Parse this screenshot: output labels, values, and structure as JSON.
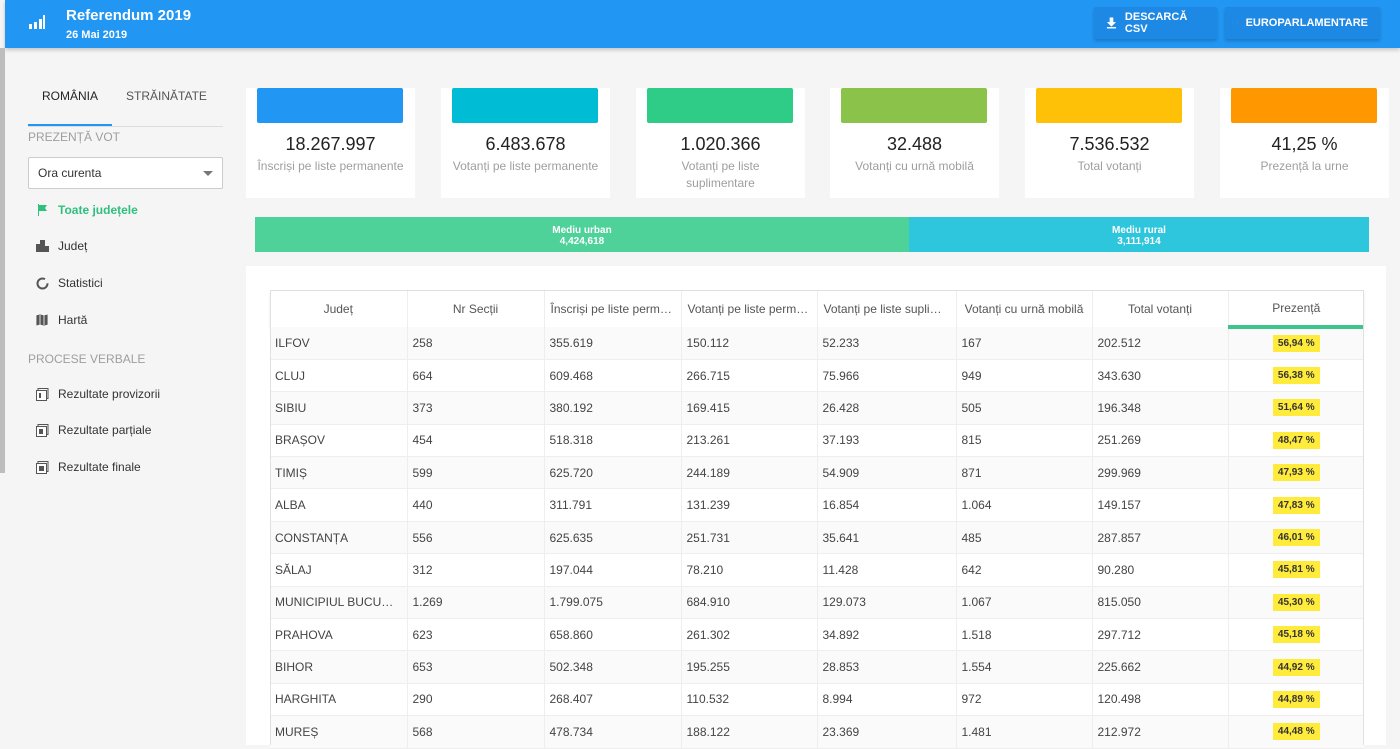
{
  "header": {
    "title": "Referendum 2019",
    "subtitle": "26 Mai 2019",
    "btn_csv": "DESCARCĂ CSV",
    "btn_euro": "EUROPARLAMENTARE"
  },
  "sidebar": {
    "tabs": [
      "ROMÂNIA",
      "STRĂINĂTATE"
    ],
    "section_vote": "PREZENȚĂ VOT",
    "select_value": "Ora curenta",
    "nav": [
      "Toate județele",
      "Județ",
      "Statistici",
      "Hartă"
    ],
    "section_pv": "PROCESE VERBALE",
    "pv": [
      "Rezultate provizorii",
      "Rezultate parțiale",
      "Rezultate finale"
    ]
  },
  "cards": [
    {
      "value": "18.267.997",
      "label": "Înscriși pe liste permanente",
      "color": "#2196f3"
    },
    {
      "value": "6.483.678",
      "label": "Votanți pe liste permanente",
      "color": "#00bcd4"
    },
    {
      "value": "1.020.366",
      "label": "Votanți pe liste suplimentare",
      "color": "#2ecc87"
    },
    {
      "value": "32.488",
      "label": "Votanți cu urnă mobilă",
      "color": "#8bc34a"
    },
    {
      "value": "7.536.532",
      "label": "Total votanți",
      "color": "#ffc107"
    },
    {
      "value": "41,25 %",
      "label": "Prezență la urne",
      "color": "#ff9800"
    }
  ],
  "mediu": {
    "urban_label": "Mediu urban",
    "urban_value": "4,424,618",
    "rural_label": "Mediu rural",
    "rural_value": "3,111,914"
  },
  "table": {
    "headers": [
      "Județ",
      "Nr Secții",
      "Înscriși pe liste permanente",
      "Votanți pe liste permanente",
      "Votanți pe liste suplimentare",
      "Votanți cu urnă mobilă",
      "Total votanți",
      "Prezență"
    ],
    "rows": [
      [
        "ILFOV",
        "258",
        "355.619",
        "150.112",
        "52.233",
        "167",
        "202.512",
        "56,94 %"
      ],
      [
        "CLUJ",
        "664",
        "609.468",
        "266.715",
        "75.966",
        "949",
        "343.630",
        "56,38 %"
      ],
      [
        "SIBIU",
        "373",
        "380.192",
        "169.415",
        "26.428",
        "505",
        "196.348",
        "51,64 %"
      ],
      [
        "BRAȘOV",
        "454",
        "518.318",
        "213.261",
        "37.193",
        "815",
        "251.269",
        "48,47 %"
      ],
      [
        "TIMIȘ",
        "599",
        "625.720",
        "244.189",
        "54.909",
        "871",
        "299.969",
        "47,93 %"
      ],
      [
        "ALBA",
        "440",
        "311.791",
        "131.239",
        "16.854",
        "1.064",
        "149.157",
        "47,83 %"
      ],
      [
        "CONSTANȚA",
        "556",
        "625.635",
        "251.731",
        "35.641",
        "485",
        "287.857",
        "46,01 %"
      ],
      [
        "SĂLAJ",
        "312",
        "197.044",
        "78.210",
        "11.428",
        "642",
        "90.280",
        "45,81 %"
      ],
      [
        "MUNICIPIUL BUCUREȘTI",
        "1.269",
        "1.799.075",
        "684.910",
        "129.073",
        "1.067",
        "815.050",
        "45,30 %"
      ],
      [
        "PRAHOVA",
        "623",
        "658.860",
        "261.302",
        "34.892",
        "1.518",
        "297.712",
        "45,18 %"
      ],
      [
        "BIHOR",
        "653",
        "502.348",
        "195.255",
        "28.853",
        "1.554",
        "225.662",
        "44,92 %"
      ],
      [
        "HARGHITA",
        "290",
        "268.407",
        "110.532",
        "8.994",
        "972",
        "120.498",
        "44,89 %"
      ],
      [
        "MUREȘ",
        "568",
        "478.734",
        "188.122",
        "23.369",
        "1.481",
        "212.972",
        "44,48 %"
      ]
    ]
  }
}
